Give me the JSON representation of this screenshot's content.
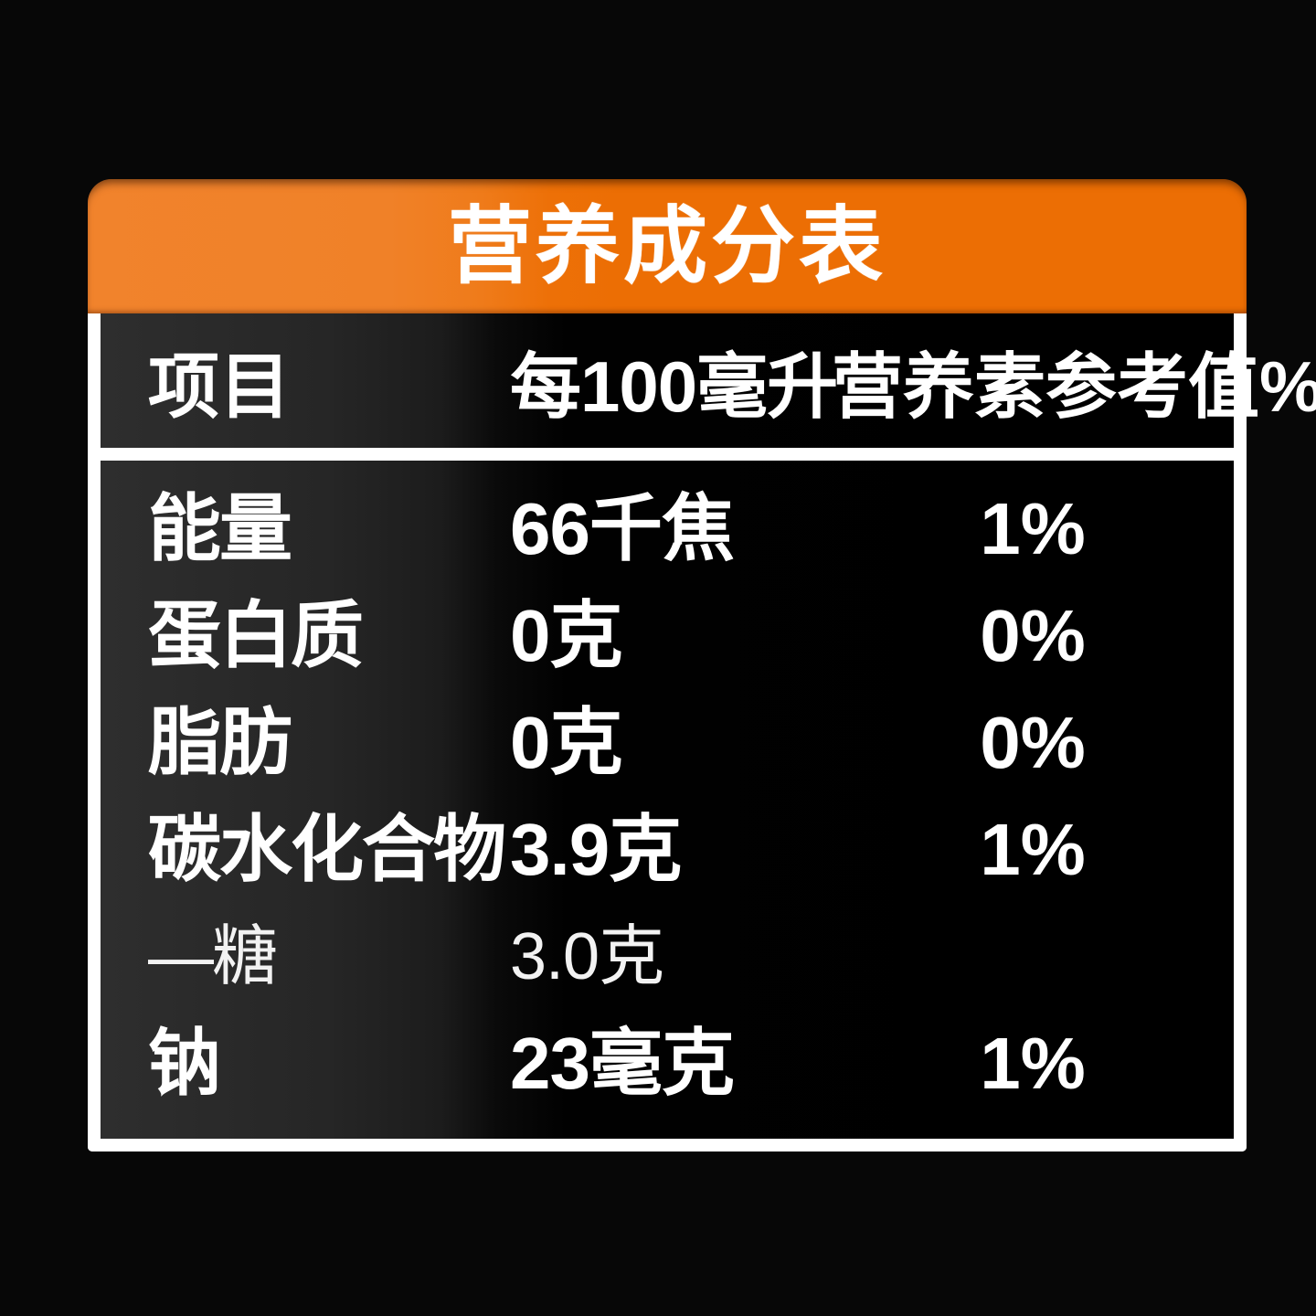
{
  "colors": {
    "background": "#070707",
    "accent_orange_left": "#F0812A",
    "accent_orange_right": "#EC6E04",
    "frame_white": "#FFFFFF",
    "panel_dark_left": "#2B2B2B",
    "panel_dark_right": "#000000",
    "text": "#FFFFFF"
  },
  "table": {
    "title": "营养成分表",
    "header": {
      "item": "项目",
      "per": "每100毫升",
      "nrv": "营养素参考值%"
    },
    "rows": [
      {
        "label": "能量",
        "value": "66千焦",
        "nrv": "1%"
      },
      {
        "label": "蛋白质",
        "value": "0克",
        "nrv": "0%"
      },
      {
        "label": "脂肪",
        "value": "0克",
        "nrv": "0%"
      },
      {
        "label": "碳水化合物",
        "value": "3.9克",
        "nrv": "1%"
      },
      {
        "label": "—糖",
        "value": "3.0克",
        "nrv": ""
      },
      {
        "label": "钠",
        "value": "23毫克",
        "nrv": "1%"
      }
    ]
  }
}
